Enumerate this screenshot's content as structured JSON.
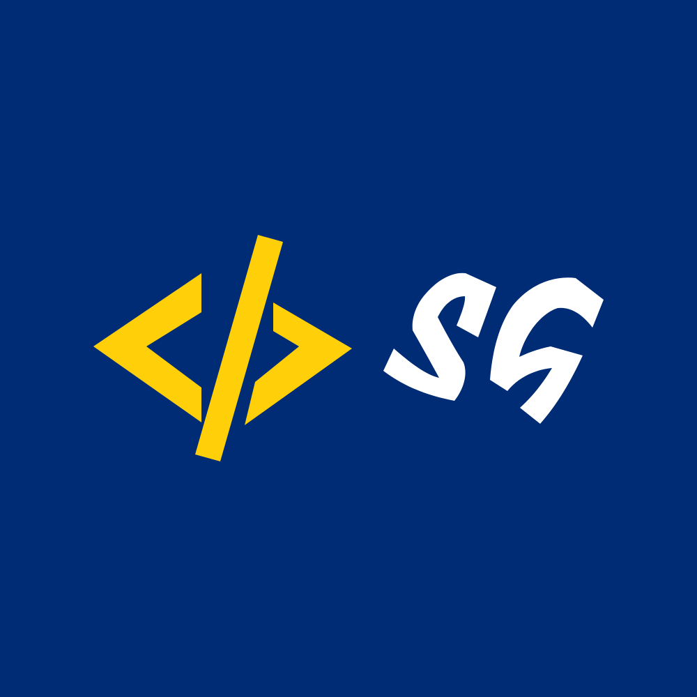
{
  "logo": {
    "text": "SG",
    "icon": "code-brackets-icon",
    "colors": {
      "background": "#002b75",
      "icon": "#ffcf0a",
      "text": "#ffffff"
    }
  }
}
